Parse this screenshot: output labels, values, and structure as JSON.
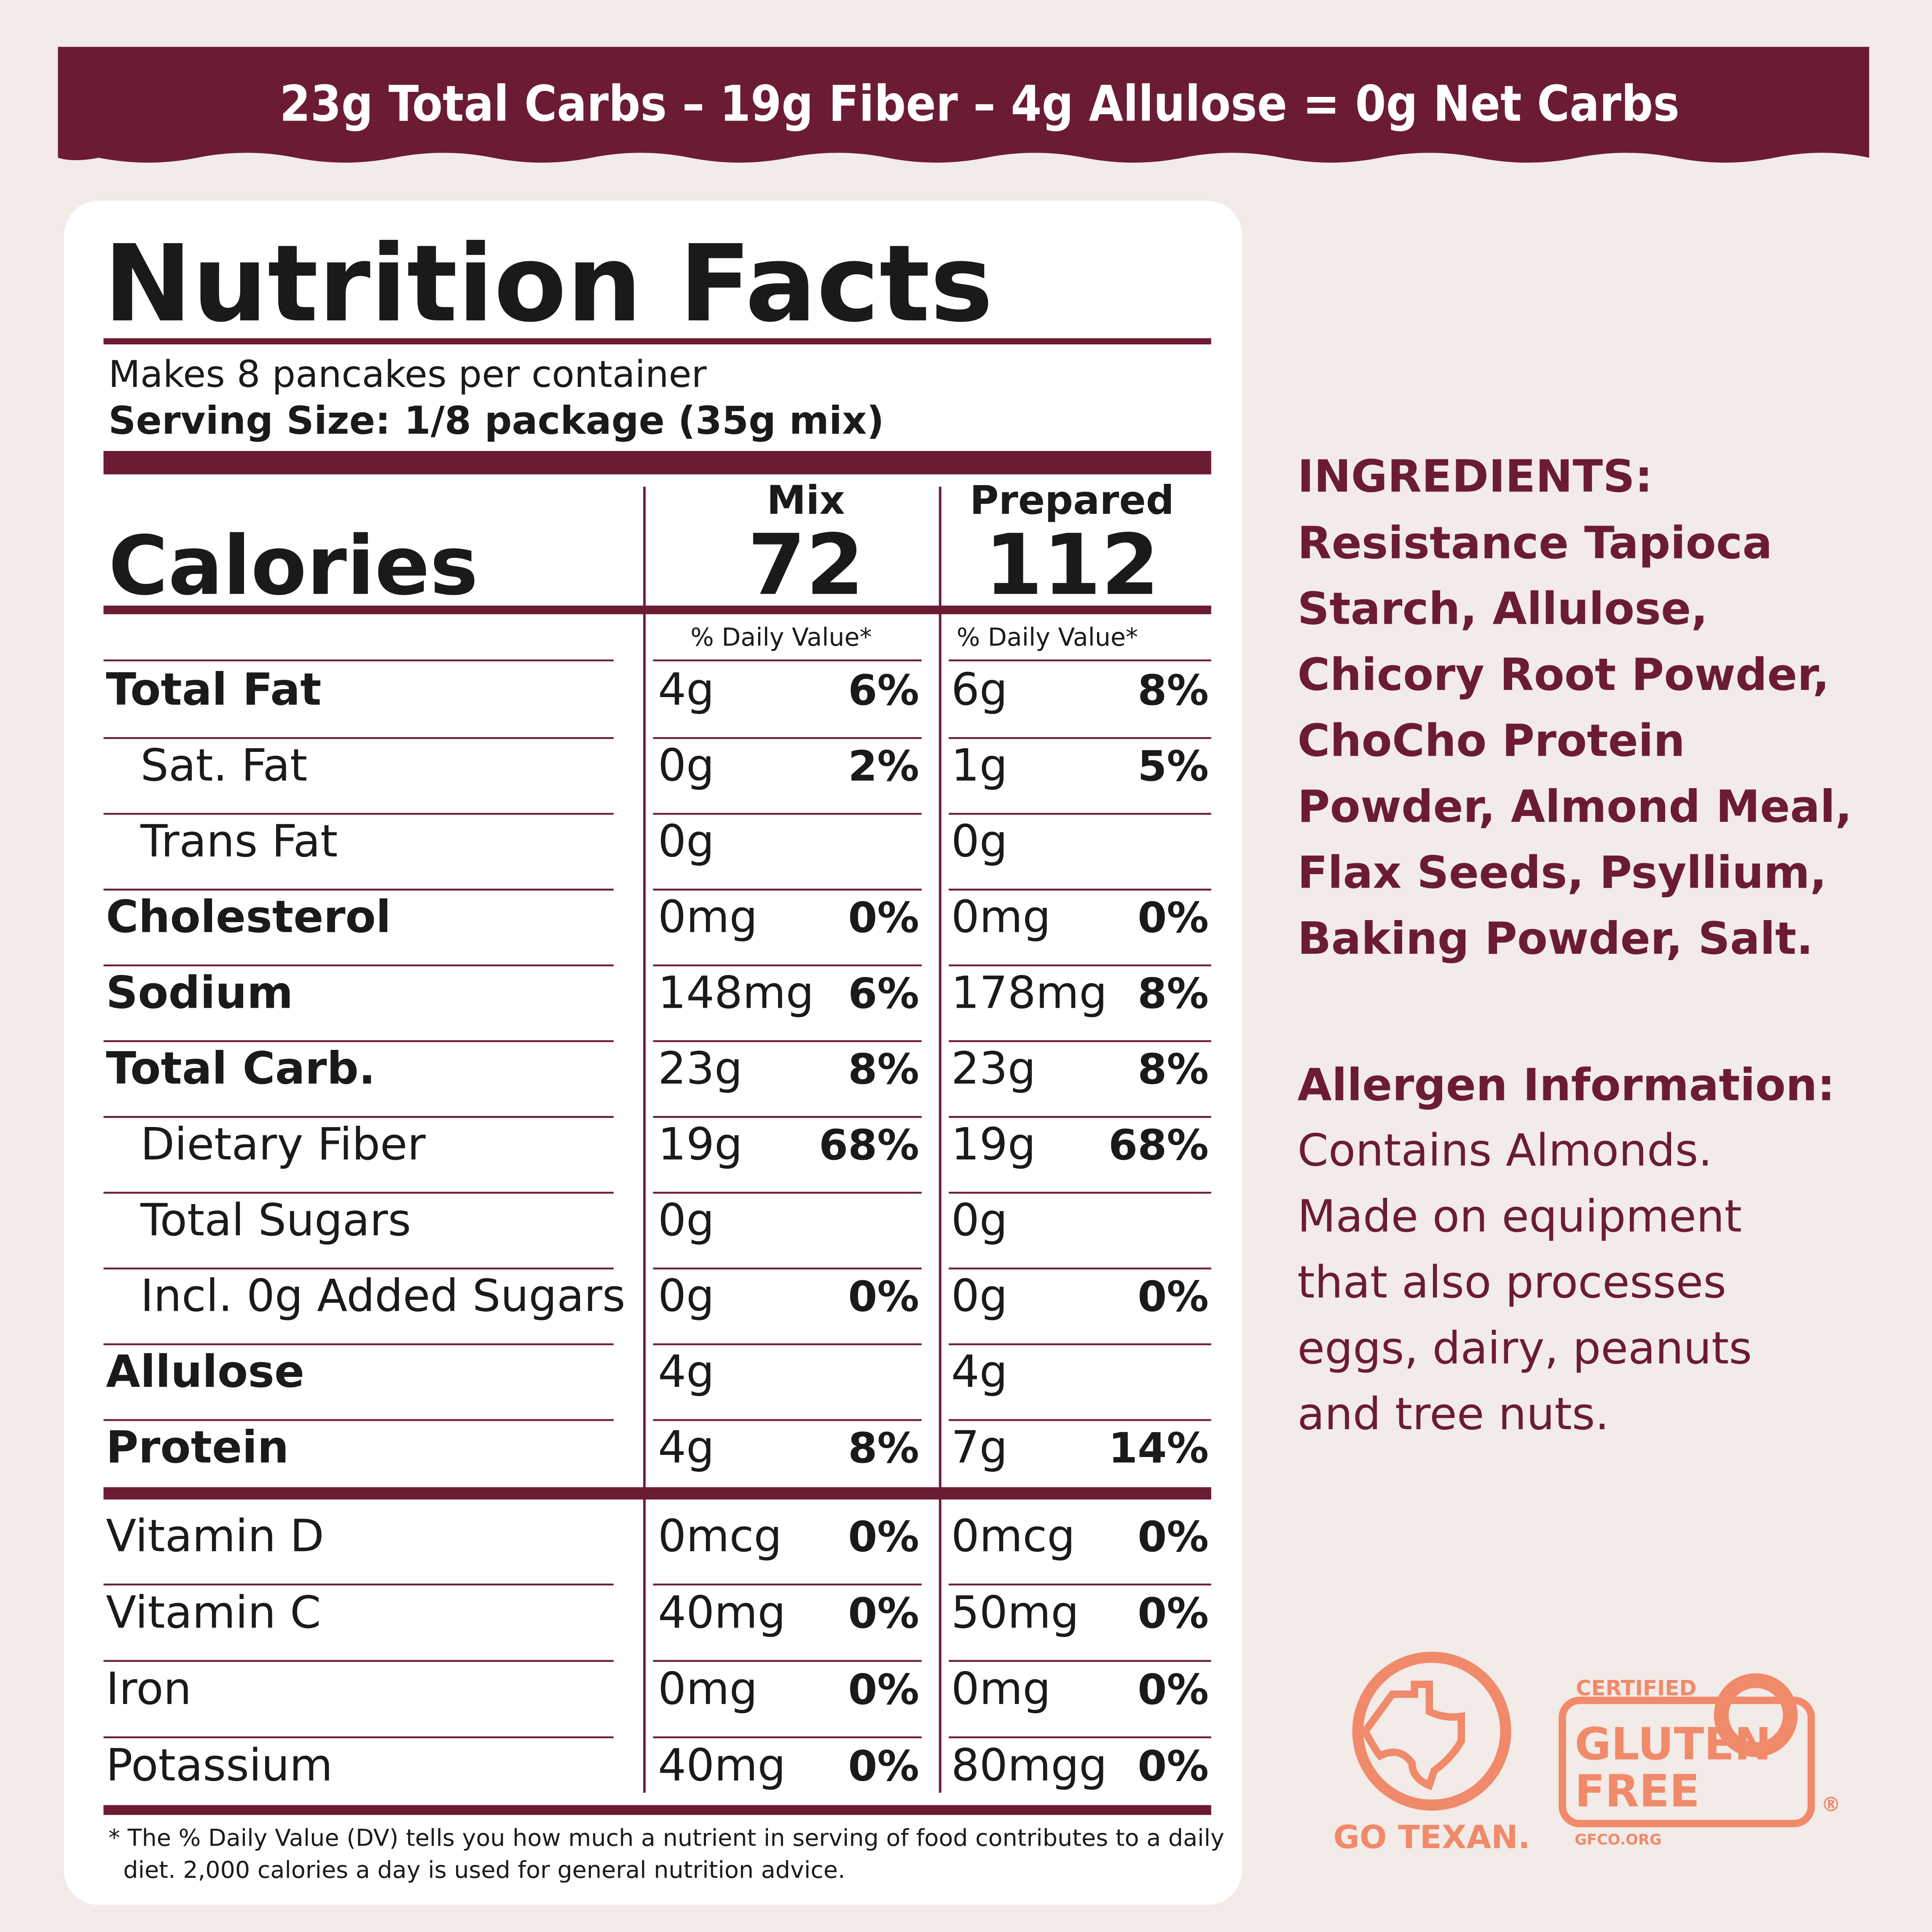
{
  "banner": {
    "text": "23g  Total Carbs  –  19g Fiber – 4g Allulose = 0g Net Carbs"
  },
  "label": {
    "title": "Nutrition Facts",
    "servings": "Makes 8 pancakes per container",
    "serving_size_label": "Serving Size:",
    "serving_size": "1/8 package (35g mix)",
    "calories_label": "Calories",
    "columns": [
      "Mix",
      "Prepared"
    ],
    "calories": [
      "72",
      "112"
    ],
    "dv_header": [
      "% Daily Value*",
      "% Daily Value*"
    ],
    "rows": [
      {
        "name": "Total Fat",
        "style": "bold",
        "mix": [
          "4g",
          "6%"
        ],
        "prepared": [
          "6g",
          "8%"
        ]
      },
      {
        "name": "Sat. Fat",
        "style": "indent",
        "mix": [
          "0g",
          "2%"
        ],
        "prepared": [
          "1g",
          "5%"
        ]
      },
      {
        "name": "Trans Fat",
        "style": "indent",
        "mix": [
          "0g",
          null
        ],
        "prepared": [
          "0g",
          null
        ]
      },
      {
        "name": "Cholesterol",
        "style": "bold",
        "mix": [
          "0mg",
          "0%"
        ],
        "prepared": [
          "0mg",
          "0%"
        ]
      },
      {
        "name": "Sodium",
        "style": "bold",
        "mix": [
          "148mg",
          "6%"
        ],
        "prepared": [
          "178mg",
          "8%"
        ]
      },
      {
        "name": "Total Carb.",
        "style": "bold",
        "mix": [
          "23g",
          "8%"
        ],
        "prepared": [
          "23g",
          "8%"
        ]
      },
      {
        "name": "Dietary Fiber",
        "style": "indent",
        "mix": [
          "19g",
          "68%"
        ],
        "prepared": [
          "19g",
          "68%"
        ]
      },
      {
        "name": "Total Sugars",
        "style": "indent",
        "mix": [
          "0g",
          null
        ],
        "prepared": [
          "0g",
          null
        ]
      },
      {
        "name": "Incl. 0g Added Sugars",
        "style": "indent",
        "mix": [
          "0g",
          "0%"
        ],
        "prepared": [
          "0g",
          "0%"
        ]
      },
      {
        "name": "Allulose",
        "style": "bold",
        "mix": [
          "4g",
          null
        ],
        "prepared": [
          "4g",
          null
        ]
      },
      {
        "name": "Protein",
        "style": "bold",
        "mix": [
          "4g",
          "8%"
        ],
        "prepared": [
          "7g",
          "14%"
        ]
      }
    ],
    "vitamins": [
      {
        "name": "Vitamin D",
        "mix": [
          "0mcg",
          "0%"
        ],
        "prepared": [
          "0mcg",
          "0%"
        ]
      },
      {
        "name": "Vitamin C",
        "mix": [
          "40mg",
          "0%"
        ],
        "prepared": [
          "50mg",
          "0%"
        ]
      },
      {
        "name": "Iron",
        "mix": [
          "0mg",
          "0%"
        ],
        "prepared": [
          "0mg",
          "0%"
        ]
      },
      {
        "name": "Potassium",
        "mix": [
          "40mg",
          "0%"
        ],
        "prepared": [
          "80mgg",
          "0%"
        ]
      }
    ],
    "footnote": [
      "* The % Daily Value (DV) tells you how much a nutrient in serving of food contributes to a daily",
      "diet. 2,000 calories a day is used for general nutrition advice."
    ]
  },
  "ingredients": {
    "heading": "INGREDIENTS:",
    "lines": [
      "Resistance Tapioca",
      "Starch, Allulose,",
      "Chicory Root Powder,",
      "ChoCho Protein",
      "Powder, Almond Meal,",
      "Flax Seeds, Psyllium,",
      "Baking Powder, Salt."
    ]
  },
  "allergens": {
    "heading": "Allergen Information:",
    "lines": [
      "Contains Almonds.",
      "Made on equipment",
      "that also processes",
      "eggs, dairy, peanuts",
      "and tree nuts."
    ]
  },
  "badges": {
    "texan": "GO TEXAN.",
    "gf_top": "CERTIFIED",
    "gf_line1": "GLUTEN",
    "gf_line2": "FREE",
    "gf_reg": "®",
    "gf_site": "GFCO.ORG"
  }
}
